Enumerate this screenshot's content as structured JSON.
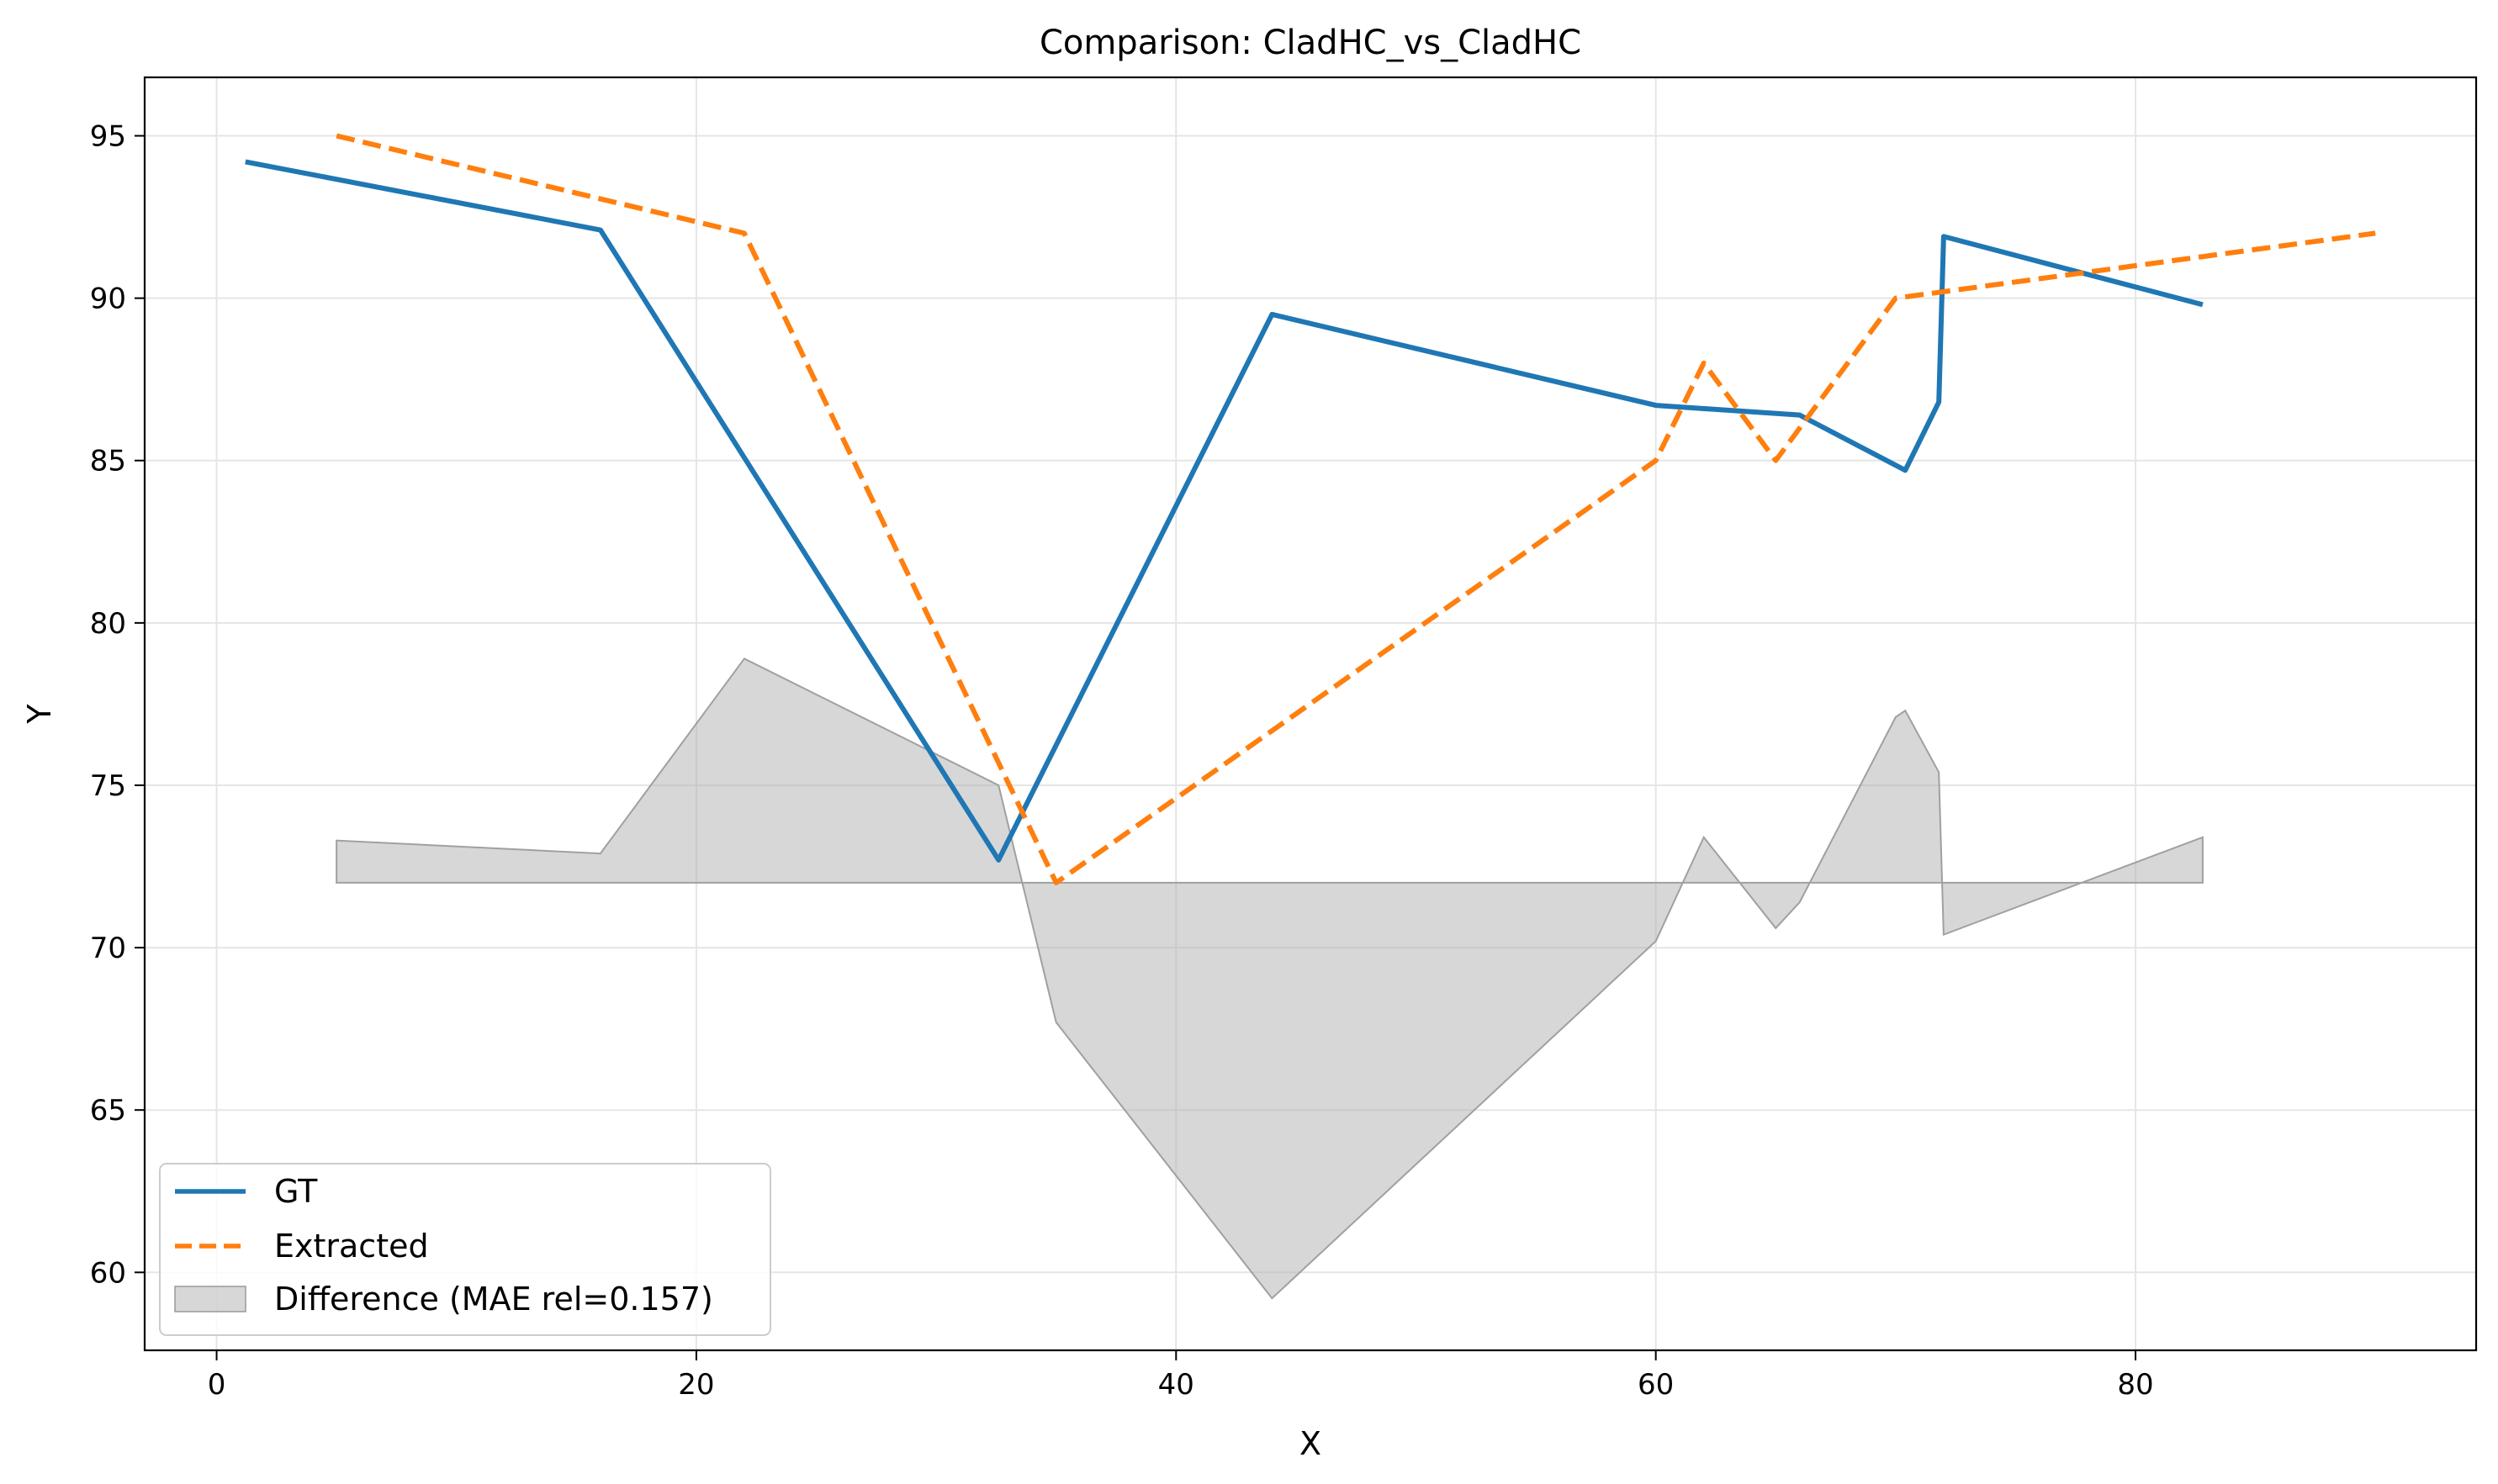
{
  "chart_data": {
    "type": "line",
    "title": "Comparison: CladHC_vs_CladHC",
    "xlabel": "X",
    "ylabel": "Y",
    "xlim": [
      -3.0,
      94.2
    ],
    "ylim": [
      57.6,
      96.8
    ],
    "x_ticks": [
      0,
      20,
      40,
      60,
      80
    ],
    "y_ticks": [
      60,
      65,
      70,
      75,
      80,
      85,
      90,
      95
    ],
    "grid": true,
    "legend_position": "lower-left",
    "series": [
      {
        "name": "GT",
        "color": "#1f77b4",
        "style": "solid",
        "points": [
          [
            1.2,
            94.2
          ],
          [
            16.0,
            92.1
          ],
          [
            32.6,
            72.7
          ],
          [
            44.0,
            89.5
          ],
          [
            60.0,
            86.7
          ],
          [
            62.0,
            86.6
          ],
          [
            66.0,
            86.4
          ],
          [
            70.4,
            84.7
          ],
          [
            71.8,
            86.8
          ],
          [
            72.0,
            91.9
          ],
          [
            82.8,
            89.8
          ]
        ]
      },
      {
        "name": "Extracted",
        "color": "#ff7f0e",
        "style": "dashed",
        "points": [
          [
            5.0,
            95.0
          ],
          [
            22.0,
            92.0
          ],
          [
            35.0,
            72.0
          ],
          [
            60.0,
            85.0
          ],
          [
            62.0,
            88.0
          ],
          [
            65.0,
            85.0
          ],
          [
            70.0,
            90.0
          ],
          [
            90.0,
            92.0
          ]
        ]
      },
      {
        "name": "Difference (MAE rel=0.157)",
        "type": "area",
        "color": "#b0b0b0",
        "baseline": 72.0,
        "points": [
          [
            5.0,
            73.3
          ],
          [
            16.0,
            72.9
          ],
          [
            22.0,
            78.9
          ],
          [
            32.6,
            75.0
          ],
          [
            35.0,
            67.7
          ],
          [
            44.0,
            59.2
          ],
          [
            60.0,
            70.2
          ],
          [
            62.0,
            73.4
          ],
          [
            65.0,
            70.6
          ],
          [
            66.0,
            71.4
          ],
          [
            70.0,
            77.1
          ],
          [
            70.4,
            77.3
          ],
          [
            71.8,
            75.4
          ],
          [
            72.0,
            70.4
          ],
          [
            82.8,
            73.4
          ]
        ]
      }
    ]
  }
}
